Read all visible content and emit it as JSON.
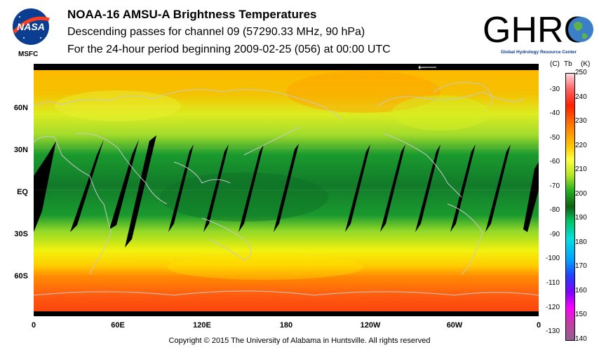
{
  "header": {
    "title": "NOAA-16 AMSU-A Brightness Temperatures",
    "line2": "Descending passes for channel 09 (57290.33 MHz, 90 hPa)",
    "line3": "For the 24-hour period beginning 2009-02-25 (056) at 00:00 UTC"
  },
  "logos": {
    "nasa_text": "NASA",
    "msfc": "MSFC",
    "ghrc_text": "GHRC",
    "ghrc_sub": "Global Hydrology Resource Center"
  },
  "map": {
    "lat_labels": [
      "60N",
      "30N",
      "EQ",
      "30S",
      "60S"
    ],
    "lon_labels": [
      "0",
      "60E",
      "120E",
      "180",
      "120W",
      "60W",
      "0"
    ],
    "arrow": "←"
  },
  "colorbar": {
    "unit_c": "(C)",
    "unit_tb": "Tb",
    "unit_k": "(K)",
    "celsius": [
      "-30",
      "-40",
      "-50",
      "-60",
      "-70",
      "-80",
      "-90",
      "-100",
      "-110",
      "-120",
      "-130"
    ],
    "kelvin": [
      "250",
      "240",
      "230",
      "220",
      "210",
      "200",
      "190",
      "180",
      "170",
      "160",
      "150",
      "140"
    ],
    "range_k": [
      140,
      250
    ]
  },
  "footer": {
    "copyright": "Copyright © 2015 The University of Alabama in Huntsville.  All rights reserved"
  }
}
